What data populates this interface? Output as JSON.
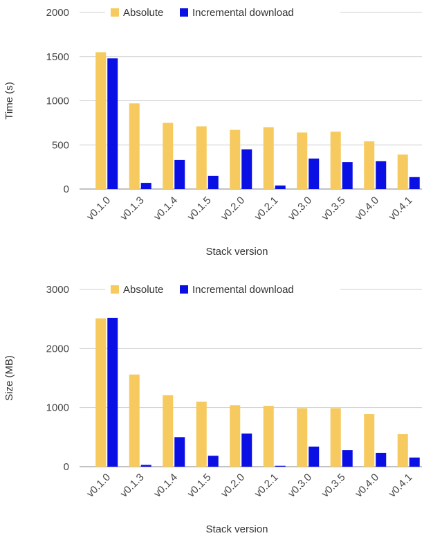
{
  "colors": {
    "absolute": "#F6CA5E",
    "incremental": "#0A10E4",
    "gridline": "#CFCFCF",
    "baseline": "#9E9E9E"
  },
  "chart_data": [
    {
      "type": "bar",
      "title": "",
      "xlabel": "Stack version",
      "ylabel": "Time (s)",
      "ylim": [
        0,
        2000
      ],
      "yticks": [
        "0",
        "500",
        "1000",
        "1500",
        "2000"
      ],
      "grid": true,
      "legend_position": "top",
      "categories": [
        "v0.1.0",
        "v0.1.3",
        "v0.1.4",
        "v0.1.5",
        "v0.2.0",
        "v0.2.1",
        "v0.3.0",
        "v0.3.5",
        "v0.4.0",
        "v0.4.1"
      ],
      "series": [
        {
          "name": "Absolute",
          "color": "#F6CA5E",
          "values": [
            1550,
            970,
            750,
            710,
            670,
            700,
            640,
            650,
            540,
            390
          ]
        },
        {
          "name": "Incremental download",
          "color": "#0A10E4",
          "values": [
            1480,
            70,
            330,
            150,
            450,
            40,
            345,
            305,
            315,
            135
          ]
        }
      ]
    },
    {
      "type": "bar",
      "title": "",
      "xlabel": "Stack version",
      "ylabel": "Size (MB)",
      "ylim": [
        0,
        3000
      ],
      "yticks": [
        "0",
        "1000",
        "2000",
        "3000"
      ],
      "grid": true,
      "legend_position": "top",
      "categories": [
        "v0.1.0",
        "v0.1.3",
        "v0.1.4",
        "v0.1.5",
        "v0.2.0",
        "v0.2.1",
        "v0.3.0",
        "v0.3.5",
        "v0.4.0",
        "v0.4.1"
      ],
      "series": [
        {
          "name": "Absolute",
          "color": "#F6CA5E",
          "values": [
            2510,
            1560,
            1210,
            1100,
            1040,
            1030,
            990,
            990,
            890,
            550
          ]
        },
        {
          "name": "Incremental download",
          "color": "#0A10E4",
          "values": [
            2520,
            30,
            500,
            185,
            560,
            15,
            340,
            280,
            235,
            155
          ]
        }
      ]
    }
  ]
}
